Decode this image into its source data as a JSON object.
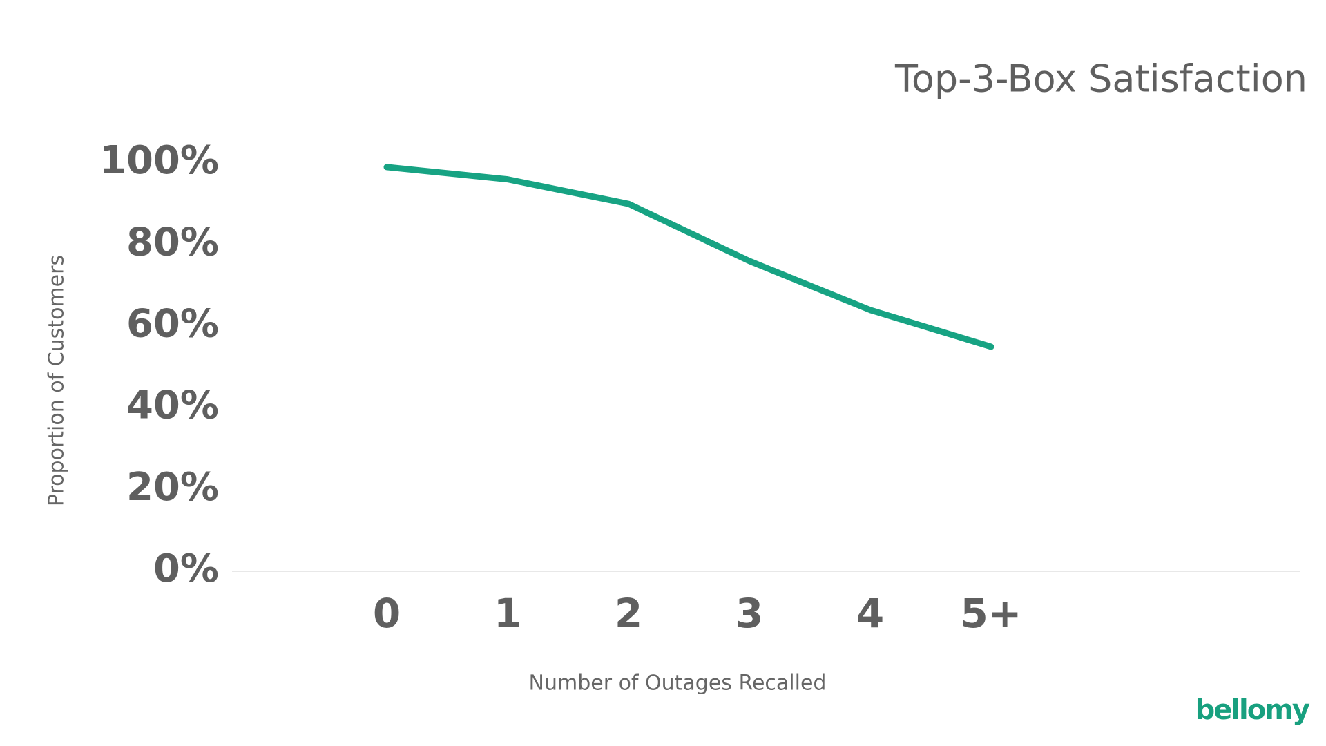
{
  "chart_data": {
    "type": "line",
    "title": "Top-3-Box Satisfaction",
    "x_label": "Number of Outages Recalled",
    "y_label": "Proportion of Customers",
    "categories": [
      "0",
      "1",
      "2",
      "3",
      "4",
      "5+"
    ],
    "series": [
      {
        "name": "Top-3-Box Satisfaction",
        "color": "#17a383",
        "values": [
          99,
          96,
          90,
          76,
          64,
          55
        ]
      }
    ],
    "ylim": [
      0,
      100
    ],
    "yticks": [
      {
        "value": 0,
        "label": "0%"
      },
      {
        "value": 20,
        "label": "20%"
      },
      {
        "value": 40,
        "label": "40%"
      },
      {
        "value": 60,
        "label": "60%"
      },
      {
        "value": 80,
        "label": "80%"
      },
      {
        "value": 100,
        "label": "100%"
      }
    ],
    "grid": false
  },
  "brand": "bellomy"
}
